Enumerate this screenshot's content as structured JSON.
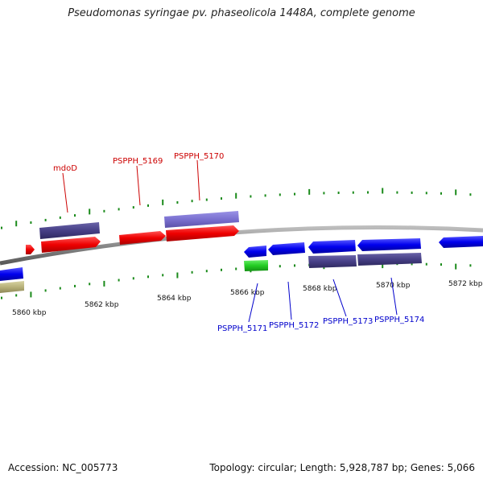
{
  "title": "Pseudomonas syringae pv. phaseolicola 1448A, complete genome",
  "footer": {
    "accession": "Accession: NC_005773",
    "summary": "Topology: circular; Length: 5,928,787 bp; Genes: 5,066"
  },
  "colors": {
    "backbone": "#8a8a8a",
    "ticks": "#1a8a1a",
    "label_forward": "#cc0000",
    "label_reverse": "#0000cc"
  },
  "scale_labels": [
    "5860 kbp",
    "5862 kbp",
    "5864 kbp",
    "5866 kbp",
    "5868 kbp",
    "5870 kbp",
    "5872 kbp"
  ],
  "genes": [
    {
      "label": "mdoD",
      "strand": "forward",
      "color": "#cc0000"
    },
    {
      "label": "PSPPH_5169",
      "strand": "forward",
      "color": "#cc0000"
    },
    {
      "label": "PSPPH_5170",
      "strand": "forward",
      "color": "#cc0000"
    },
    {
      "label": "PSPPH_5171",
      "strand": "reverse",
      "color": "#0000cc"
    },
    {
      "label": "PSPPH_5172",
      "strand": "reverse",
      "color": "#0000cc"
    },
    {
      "label": "PSPPH_5173",
      "strand": "reverse",
      "color": "#0000cc"
    },
    {
      "label": "PSPPH_5174",
      "strand": "reverse",
      "color": "#0000cc"
    }
  ]
}
